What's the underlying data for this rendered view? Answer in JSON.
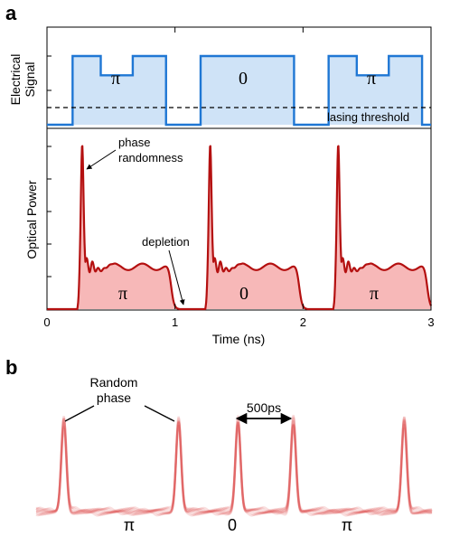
{
  "chart_data": [
    {
      "panel": "a",
      "type": "line",
      "x_axis": {
        "label": "Time (ns)",
        "range": [
          0,
          3
        ],
        "ticks": [
          "0",
          "1",
          "2",
          "3"
        ]
      },
      "subplots": [
        {
          "name": "electrical",
          "ylabel_line1": "Electrical",
          "ylabel_line2": "Signal",
          "color": "#1f77d4",
          "fill": "#cfe3f7",
          "pulses": [
            {
              "start": 0.2,
              "end": 0.93,
              "level": 1.0,
              "dip_start": 0.42,
              "dip_end": 0.67,
              "dip_level": 0.72,
              "label": "π"
            },
            {
              "start": 1.2,
              "end": 1.93,
              "level": 1.0,
              "label": "0"
            },
            {
              "start": 2.2,
              "end": 2.93,
              "level": 1.0,
              "dip_start": 2.42,
              "dip_end": 2.67,
              "dip_level": 0.72,
              "label": "π"
            }
          ],
          "threshold": {
            "level": 0.25,
            "label": "lasing threshold"
          }
        },
        {
          "name": "optical",
          "ylabel": "Optical Power",
          "color": "#b41010",
          "fill": "#f7b8b8",
          "pulse_onsets_ns": [
            0.25,
            1.25,
            2.25
          ],
          "pulse_ends_ns": [
            0.97,
            1.97,
            2.97
          ],
          "peak_power": 1.0,
          "plateau_power": 0.26,
          "segment_labels": [
            "π",
            "0",
            "π"
          ],
          "annotations": [
            {
              "text_line1": "phase",
              "text_line2": "randomness",
              "target_ns": 0.27
            },
            {
              "text": "depletion",
              "target_ns": 1.1
            }
          ]
        }
      ]
    },
    {
      "panel": "b",
      "type": "line",
      "color": "#d93a3a",
      "peak_positions_rel": [
        0.07,
        0.36,
        0.51,
        0.65,
        0.93
      ],
      "phase_labels": [
        "π",
        "0",
        "π"
      ],
      "annotations": {
        "random_phase_line1": "Random",
        "random_phase_line2": "phase",
        "interval": "500ps"
      }
    }
  ],
  "panel_letters": [
    "a",
    "b"
  ]
}
